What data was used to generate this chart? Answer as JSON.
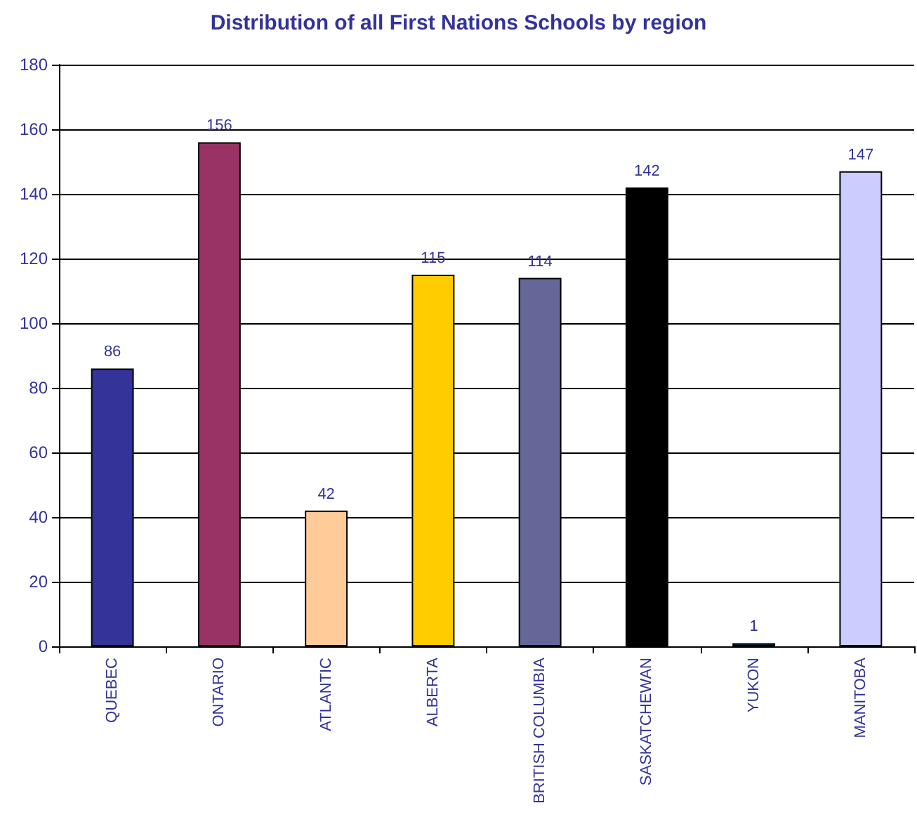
{
  "chart_data": {
    "type": "bar",
    "title": "Distribution of all First Nations Schools by region",
    "categories": [
      "QUEBEC",
      "ONTARIO",
      "ATLANTIC",
      "ALBERTA",
      "BRITISH COLUMBIA",
      "SASKATCHEWAN",
      "YUKON",
      "MANITOBA"
    ],
    "values": [
      86,
      156,
      42,
      115,
      114,
      142,
      1,
      147
    ],
    "colors": [
      "#333399",
      "#993366",
      "#ffcc99",
      "#ffcc00",
      "#666699",
      "#000000",
      "#003366",
      "#ccccff"
    ],
    "ylim": [
      0,
      180
    ],
    "yticks": [
      0,
      20,
      40,
      60,
      80,
      100,
      120,
      140,
      160,
      180
    ],
    "grid": "y",
    "data_labels": true
  }
}
